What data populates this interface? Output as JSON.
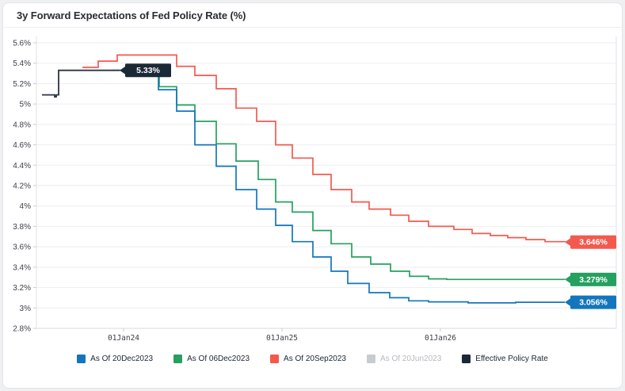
{
  "header": {
    "title": "3y Forward Expectations of Fed Policy Rate (%)"
  },
  "chart_data": {
    "type": "line",
    "step": true,
    "title": "3y Forward Expectations of Fed Policy Rate (%)",
    "xlabel": "",
    "ylabel": "",
    "x_axis_note": "t = years relative to 01Jan24",
    "xlim": [
      -0.55,
      3.11
    ],
    "ylim": [
      2.8,
      5.6
    ],
    "grid": "horizontal",
    "legend_position": "bottom",
    "y_ticks": [
      {
        "v": 5.6,
        "label": "5.6%"
      },
      {
        "v": 5.4,
        "label": "5.4%"
      },
      {
        "v": 5.2,
        "label": "5.2%"
      },
      {
        "v": 5.0,
        "label": "5%"
      },
      {
        "v": 4.8,
        "label": "4.8%"
      },
      {
        "v": 4.6,
        "label": "4.6%"
      },
      {
        "v": 4.4,
        "label": "4.4%"
      },
      {
        "v": 4.2,
        "label": "4.2%"
      },
      {
        "v": 4.0,
        "label": "4%"
      },
      {
        "v": 3.8,
        "label": "3.8%"
      },
      {
        "v": 3.6,
        "label": "3.6%"
      },
      {
        "v": 3.4,
        "label": "3.4%"
      },
      {
        "v": 3.2,
        "label": "3.2%"
      },
      {
        "v": 3.0,
        "label": "3%"
      },
      {
        "v": 2.8,
        "label": "2.8%"
      }
    ],
    "x_ticks": [
      {
        "t": 0,
        "label": "01Jan24"
      },
      {
        "t": 1,
        "label": "01Jan25"
      },
      {
        "t": 2,
        "label": "01Jan26"
      }
    ],
    "series": [
      {
        "name": "As Of 20Sep2023",
        "color": "#f4594e",
        "visible": true,
        "end_label": "3.646%",
        "points": [
          [
            -0.26,
            5.36
          ],
          [
            -0.16,
            5.42
          ],
          [
            -0.04,
            5.48
          ],
          [
            0.335,
            5.37
          ],
          [
            0.45,
            5.28
          ],
          [
            0.585,
            5.15
          ],
          [
            0.71,
            4.96
          ],
          [
            0.84,
            4.83
          ],
          [
            0.96,
            4.6
          ],
          [
            1.065,
            4.47
          ],
          [
            1.195,
            4.31
          ],
          [
            1.31,
            4.16
          ],
          [
            1.44,
            4.04
          ],
          [
            1.55,
            3.97
          ],
          [
            1.685,
            3.91
          ],
          [
            1.8,
            3.85
          ],
          [
            1.925,
            3.8
          ],
          [
            2.085,
            3.77
          ],
          [
            2.2,
            3.73
          ],
          [
            2.315,
            3.71
          ],
          [
            2.425,
            3.69
          ],
          [
            2.54,
            3.67
          ],
          [
            2.66,
            3.65
          ],
          [
            2.785,
            3.646
          ]
        ]
      },
      {
        "name": "As Of 06Dec2023",
        "color": "#25a05f",
        "visible": true,
        "end_label": "3.279%",
        "points": [
          [
            -0.07,
            5.33
          ],
          [
            0.225,
            5.17
          ],
          [
            0.335,
            4.99
          ],
          [
            0.45,
            4.83
          ],
          [
            0.585,
            4.61
          ],
          [
            0.71,
            4.44
          ],
          [
            0.85,
            4.26
          ],
          [
            0.96,
            4.04
          ],
          [
            1.065,
            3.94
          ],
          [
            1.195,
            3.76
          ],
          [
            1.31,
            3.63
          ],
          [
            1.44,
            3.5
          ],
          [
            1.56,
            3.43
          ],
          [
            1.685,
            3.36
          ],
          [
            1.805,
            3.31
          ],
          [
            1.925,
            3.285
          ],
          [
            2.04,
            3.28
          ],
          [
            2.785,
            3.279
          ]
        ]
      },
      {
        "name": "As Of 20Dec2023",
        "color": "#1376bd",
        "visible": true,
        "end_label": "3.056%",
        "points": [
          [
            -0.025,
            5.33
          ],
          [
            0.22,
            5.14
          ],
          [
            0.335,
            4.93
          ],
          [
            0.45,
            4.6
          ],
          [
            0.585,
            4.39
          ],
          [
            0.71,
            4.16
          ],
          [
            0.84,
            3.97
          ],
          [
            0.96,
            3.81
          ],
          [
            1.065,
            3.65
          ],
          [
            1.195,
            3.5
          ],
          [
            1.31,
            3.36
          ],
          [
            1.415,
            3.24
          ],
          [
            1.55,
            3.15
          ],
          [
            1.68,
            3.1
          ],
          [
            1.8,
            3.07
          ],
          [
            1.925,
            3.06
          ],
          [
            2.175,
            3.05
          ],
          [
            2.475,
            3.056
          ],
          [
            2.785,
            3.056
          ]
        ]
      },
      {
        "name": "As Of 20Jun2023",
        "color": "#c9ccce",
        "visible": false,
        "points": []
      },
      {
        "name": "Effective Policy Rate",
        "color": "#2a3442",
        "label_color": "#1b2937",
        "width": 1.8,
        "visible": true,
        "end_label": "5.33%",
        "points": [
          [
            -0.515,
            5.09
          ],
          [
            -0.435,
            5.07
          ],
          [
            -0.425,
            5.09
          ],
          [
            -0.41,
            5.33
          ],
          [
            -0.025,
            5.33
          ]
        ]
      }
    ],
    "legend_order": [
      "As Of 20Dec2023",
      "As Of 06Dec2023",
      "As Of 20Sep2023",
      "As Of 20Jun2023",
      "Effective Policy Rate"
    ]
  }
}
